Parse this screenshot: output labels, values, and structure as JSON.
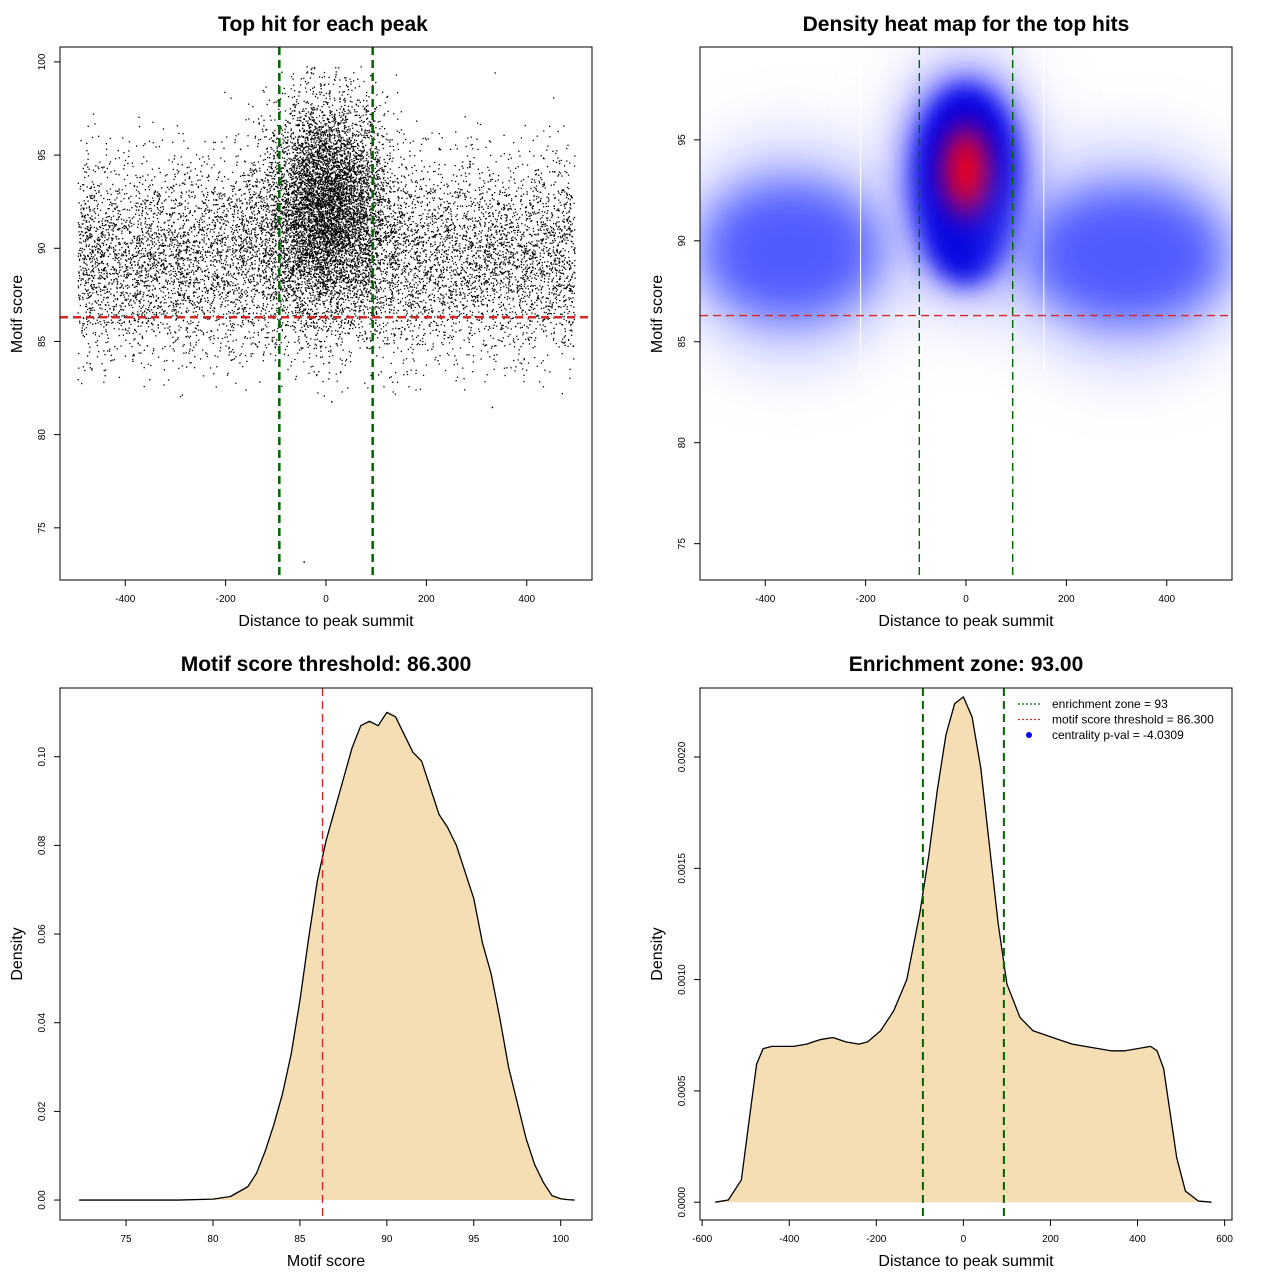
{
  "chart_data": [
    {
      "type": "scatter",
      "title": "Top hit for each peak",
      "xlabel": "Distance to peak summit",
      "ylabel": "Motif score",
      "xlim": [
        -530,
        530
      ],
      "ylim": [
        72.2,
        100.8
      ],
      "xticks": [
        -400,
        -200,
        0,
        200,
        400
      ],
      "yticks": [
        75,
        80,
        85,
        90,
        95,
        100
      ],
      "x_range_points": [
        -495,
        495
      ],
      "hlines": [
        {
          "y": 86.3,
          "color": "#d62728",
          "style": "dashed"
        }
      ],
      "vlines": [
        {
          "x": -93,
          "color": "#006400",
          "style": "dashed"
        },
        {
          "x": 93,
          "color": "#006400",
          "style": "dashed"
        }
      ],
      "clusters": [
        {
          "cx": 0,
          "cy": 92.5,
          "sx": 60,
          "sy": 2.8,
          "n": 6000
        },
        {
          "cx": 0,
          "cy": 89.5,
          "sx": 300,
          "sy": 2.6,
          "n": 9000
        }
      ],
      "outliers": [
        {
          "x": -45,
          "y": 73.2
        },
        {
          "x": 10,
          "y": 81.8
        },
        {
          "x": 330,
          "y": 81.5
        }
      ]
    },
    {
      "type": "heatmap",
      "title": "Density heat map for the top hits",
      "xlabel": "Distance to peak summit",
      "ylabel": "Motif score",
      "xlim": [
        -530,
        530
      ],
      "ylim": [
        73.2,
        99.6
      ],
      "xticks": [
        -400,
        -200,
        0,
        200,
        400
      ],
      "yticks": [
        75,
        80,
        85,
        90,
        95
      ],
      "hlines": [
        {
          "y": 86.3,
          "color": "#d62728",
          "style": "dashed"
        }
      ],
      "vlines": [
        {
          "x": -93,
          "color": "#006400",
          "style": "dashed"
        },
        {
          "x": 93,
          "color": "#006400",
          "style": "dashed"
        }
      ],
      "white_lines_x": [
        -210,
        155
      ],
      "blobs": [
        {
          "cx": 0,
          "cy": 93,
          "rx": 110,
          "ry": 5,
          "intensity": "high"
        },
        {
          "cx": -350,
          "cy": 89.5,
          "rx": 180,
          "ry": 2.5,
          "intensity": "medium"
        },
        {
          "cx": 320,
          "cy": 89.3,
          "rx": 200,
          "ry": 2.5,
          "intensity": "medium"
        }
      ]
    },
    {
      "type": "area",
      "title": "Motif score threshold: 86.300",
      "xlabel": "Motif score",
      "ylabel": "Density",
      "xlim": [
        71.2,
        101.8
      ],
      "ylim": [
        -0.0045,
        0.1155
      ],
      "xticks": [
        75,
        80,
        85,
        90,
        95,
        100
      ],
      "yticks": [
        0.0,
        0.02,
        0.04,
        0.06,
        0.08,
        0.1
      ],
      "ytick_labels": [
        "0.00",
        "0.02",
        "0.04",
        "0.06",
        "0.08",
        "0.10"
      ],
      "vlines": [
        {
          "x": 86.3,
          "color": "#d62728",
          "style": "dashed"
        }
      ],
      "x": [
        72.3,
        75,
        78,
        80,
        81,
        82,
        82.5,
        83,
        83.5,
        84,
        84.5,
        85,
        85.5,
        86,
        86.5,
        87,
        87.5,
        88,
        88.5,
        89,
        89.5,
        90,
        90.5,
        91,
        91.5,
        92,
        92.5,
        93,
        93.5,
        94,
        94.5,
        95,
        95.5,
        96,
        96.5,
        97,
        97.5,
        98,
        98.5,
        99,
        99.5,
        100,
        100.4,
        100.8
      ],
      "y": [
        0.0,
        0.0,
        0.0,
        0.0002,
        0.0008,
        0.003,
        0.006,
        0.011,
        0.017,
        0.024,
        0.033,
        0.045,
        0.059,
        0.072,
        0.081,
        0.088,
        0.095,
        0.102,
        0.107,
        0.108,
        0.107,
        0.11,
        0.109,
        0.105,
        0.101,
        0.099,
        0.093,
        0.087,
        0.084,
        0.08,
        0.074,
        0.068,
        0.058,
        0.051,
        0.041,
        0.03,
        0.022,
        0.014,
        0.008,
        0.004,
        0.001,
        0.0003,
        0.0001,
        0.0
      ]
    },
    {
      "type": "area",
      "title": "Enrichment zone: 93.00",
      "xlabel": "Distance to peak summit",
      "ylabel": "Density",
      "xlim": [
        -605,
        617
      ],
      "ylim": [
        -8e-05,
        0.00231
      ],
      "xticks": [
        -600,
        -400,
        -200,
        0,
        200,
        400,
        600
      ],
      "yticks": [
        0.0,
        0.0005,
        0.001,
        0.0015,
        0.002
      ],
      "ytick_labels": [
        "0.0000",
        "0.0005",
        "0.0010",
        "0.0015",
        "0.0020"
      ],
      "vlines": [
        {
          "x": -93,
          "color": "#006400",
          "style": "dashed"
        },
        {
          "x": 93,
          "color": "#006400",
          "style": "dashed"
        }
      ],
      "x": [
        -570,
        -540,
        -510,
        -490,
        -475,
        -460,
        -440,
        -420,
        -390,
        -360,
        -330,
        -300,
        -270,
        -240,
        -220,
        -190,
        -160,
        -130,
        -100,
        -80,
        -60,
        -40,
        -20,
        0,
        20,
        40,
        60,
        80,
        100,
        130,
        160,
        190,
        220,
        250,
        280,
        310,
        340,
        370,
        400,
        430,
        445,
        460,
        475,
        490,
        510,
        540,
        570
      ],
      "y": [
        0.0,
        1e-05,
        0.0001,
        0.0004,
        0.00062,
        0.00069,
        0.0007,
        0.0007,
        0.0007,
        0.00071,
        0.00073,
        0.00074,
        0.00072,
        0.00071,
        0.00072,
        0.00077,
        0.00086,
        0.001,
        0.0013,
        0.00155,
        0.00185,
        0.0021,
        0.00224,
        0.00227,
        0.00218,
        0.00195,
        0.0016,
        0.00125,
        0.00098,
        0.00083,
        0.00077,
        0.00075,
        0.00073,
        0.00071,
        0.0007,
        0.00069,
        0.00068,
        0.00068,
        0.00069,
        0.0007,
        0.00068,
        0.0006,
        0.0004,
        0.0002,
        5e-05,
        5e-06,
        0.0
      ],
      "legend": [
        {
          "label": "enrichment zone = 93",
          "color": "#006400",
          "kind": "line"
        },
        {
          "label": "motif score threshold = 86.300",
          "color": "#d62728",
          "kind": "line"
        },
        {
          "label": "centrality p-val = -4.0309",
          "color": "#0000ff",
          "kind": "point"
        }
      ],
      "legend_position": "top-right"
    }
  ]
}
